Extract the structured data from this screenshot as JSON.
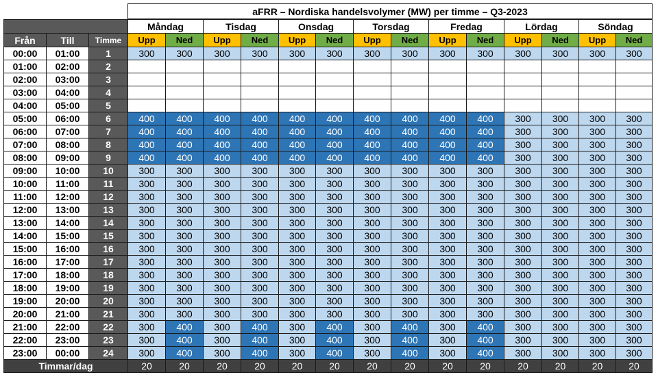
{
  "title": "aFRR – Nordiska handelsvolymer (MW) per timme – Q3-2023",
  "headers": {
    "fran": "Från",
    "till": "Till",
    "timme": "Timme",
    "upp": "Upp",
    "ned": "Ned"
  },
  "days": [
    "Måndag",
    "Tisdag",
    "Onsdag",
    "Torsdag",
    "Fredag",
    "Lördag",
    "Söndag"
  ],
  "rows": [
    {
      "from": "00:00",
      "to": "01:00",
      "hour": "1",
      "values": [
        "300",
        "300",
        "300",
        "300",
        "300",
        "300",
        "300",
        "300",
        "300",
        "300",
        "300",
        "300",
        "300",
        "300"
      ]
    },
    {
      "from": "01:00",
      "to": "02:00",
      "hour": "2",
      "values": [
        "",
        "",
        "",
        "",
        "",
        "",
        "",
        "",
        "",
        "",
        "",
        "",
        "",
        ""
      ]
    },
    {
      "from": "02:00",
      "to": "03:00",
      "hour": "3",
      "values": [
        "",
        "",
        "",
        "",
        "",
        "",
        "",
        "",
        "",
        "",
        "",
        "",
        "",
        ""
      ]
    },
    {
      "from": "03:00",
      "to": "04:00",
      "hour": "4",
      "values": [
        "",
        "",
        "",
        "",
        "",
        "",
        "",
        "",
        "",
        "",
        "",
        "",
        "",
        ""
      ]
    },
    {
      "from": "04:00",
      "to": "05:00",
      "hour": "5",
      "values": [
        "",
        "",
        "",
        "",
        "",
        "",
        "",
        "",
        "",
        "",
        "",
        "",
        "",
        ""
      ]
    },
    {
      "from": "05:00",
      "to": "06:00",
      "hour": "6",
      "values": [
        "400",
        "400",
        "400",
        "400",
        "400",
        "400",
        "400",
        "400",
        "400",
        "400",
        "300",
        "300",
        "300",
        "300"
      ]
    },
    {
      "from": "06:00",
      "to": "07:00",
      "hour": "7",
      "values": [
        "400",
        "400",
        "400",
        "400",
        "400",
        "400",
        "400",
        "400",
        "400",
        "400",
        "300",
        "300",
        "300",
        "300"
      ]
    },
    {
      "from": "07:00",
      "to": "08:00",
      "hour": "8",
      "values": [
        "400",
        "400",
        "400",
        "400",
        "400",
        "400",
        "400",
        "400",
        "400",
        "400",
        "300",
        "300",
        "300",
        "300"
      ]
    },
    {
      "from": "08:00",
      "to": "09:00",
      "hour": "9",
      "values": [
        "400",
        "400",
        "400",
        "400",
        "400",
        "400",
        "400",
        "400",
        "400",
        "400",
        "300",
        "300",
        "300",
        "300"
      ]
    },
    {
      "from": "09:00",
      "to": "10:00",
      "hour": "10",
      "values": [
        "300",
        "300",
        "300",
        "300",
        "300",
        "300",
        "300",
        "300",
        "300",
        "300",
        "300",
        "300",
        "300",
        "300"
      ]
    },
    {
      "from": "10:00",
      "to": "11:00",
      "hour": "11",
      "values": [
        "300",
        "300",
        "300",
        "300",
        "300",
        "300",
        "300",
        "300",
        "300",
        "300",
        "300",
        "300",
        "300",
        "300"
      ]
    },
    {
      "from": "11:00",
      "to": "12:00",
      "hour": "12",
      "values": [
        "300",
        "300",
        "300",
        "300",
        "300",
        "300",
        "300",
        "300",
        "300",
        "300",
        "300",
        "300",
        "300",
        "300"
      ]
    },
    {
      "from": "12:00",
      "to": "13:00",
      "hour": "13",
      "values": [
        "300",
        "300",
        "300",
        "300",
        "300",
        "300",
        "300",
        "300",
        "300",
        "300",
        "300",
        "300",
        "300",
        "300"
      ]
    },
    {
      "from": "13:00",
      "to": "14:00",
      "hour": "14",
      "values": [
        "300",
        "300",
        "300",
        "300",
        "300",
        "300",
        "300",
        "300",
        "300",
        "300",
        "300",
        "300",
        "300",
        "300"
      ]
    },
    {
      "from": "14:00",
      "to": "15:00",
      "hour": "15",
      "values": [
        "300",
        "300",
        "300",
        "300",
        "300",
        "300",
        "300",
        "300",
        "300",
        "300",
        "300",
        "300",
        "300",
        "300"
      ]
    },
    {
      "from": "15:00",
      "to": "16:00",
      "hour": "16",
      "values": [
        "300",
        "300",
        "300",
        "300",
        "300",
        "300",
        "300",
        "300",
        "300",
        "300",
        "300",
        "300",
        "300",
        "300"
      ]
    },
    {
      "from": "16:00",
      "to": "17:00",
      "hour": "17",
      "values": [
        "300",
        "300",
        "300",
        "300",
        "300",
        "300",
        "300",
        "300",
        "300",
        "300",
        "300",
        "300",
        "300",
        "300"
      ]
    },
    {
      "from": "17:00",
      "to": "18:00",
      "hour": "18",
      "values": [
        "300",
        "300",
        "300",
        "300",
        "300",
        "300",
        "300",
        "300",
        "300",
        "300",
        "300",
        "300",
        "300",
        "300"
      ]
    },
    {
      "from": "18:00",
      "to": "19:00",
      "hour": "19",
      "values": [
        "300",
        "300",
        "300",
        "300",
        "300",
        "300",
        "300",
        "300",
        "300",
        "300",
        "300",
        "300",
        "300",
        "300"
      ]
    },
    {
      "from": "19:00",
      "to": "20:00",
      "hour": "20",
      "values": [
        "300",
        "300",
        "300",
        "300",
        "300",
        "300",
        "300",
        "300",
        "300",
        "300",
        "300",
        "300",
        "300",
        "300"
      ]
    },
    {
      "from": "20:00",
      "to": "21:00",
      "hour": "21",
      "values": [
        "300",
        "300",
        "300",
        "300",
        "300",
        "300",
        "300",
        "300",
        "300",
        "300",
        "300",
        "300",
        "300",
        "300"
      ]
    },
    {
      "from": "21:00",
      "to": "22:00",
      "hour": "22",
      "values": [
        "300",
        "400",
        "300",
        "400",
        "300",
        "400",
        "300",
        "400",
        "300",
        "400",
        "300",
        "300",
        "300",
        "300"
      ]
    },
    {
      "from": "22:00",
      "to": "23:00",
      "hour": "23",
      "values": [
        "300",
        "400",
        "300",
        "400",
        "300",
        "400",
        "300",
        "400",
        "300",
        "400",
        "300",
        "300",
        "300",
        "300"
      ]
    },
    {
      "from": "23:00",
      "to": "00:00",
      "hour": "24",
      "values": [
        "300",
        "400",
        "300",
        "400",
        "300",
        "400",
        "300",
        "400",
        "300",
        "400",
        "300",
        "300",
        "300",
        "300"
      ]
    }
  ],
  "footer": {
    "label": "Timmar/dag",
    "values": [
      "20",
      "20",
      "20",
      "20",
      "20",
      "20",
      "20",
      "20",
      "20",
      "20",
      "20",
      "20",
      "20",
      "20"
    ]
  },
  "colors": {
    "header_dark": "#595959",
    "upp": "#ffc000",
    "ned": "#70ad47",
    "v300": "#bdd7ee",
    "v400": "#2e75b6",
    "footer": "#404040"
  }
}
